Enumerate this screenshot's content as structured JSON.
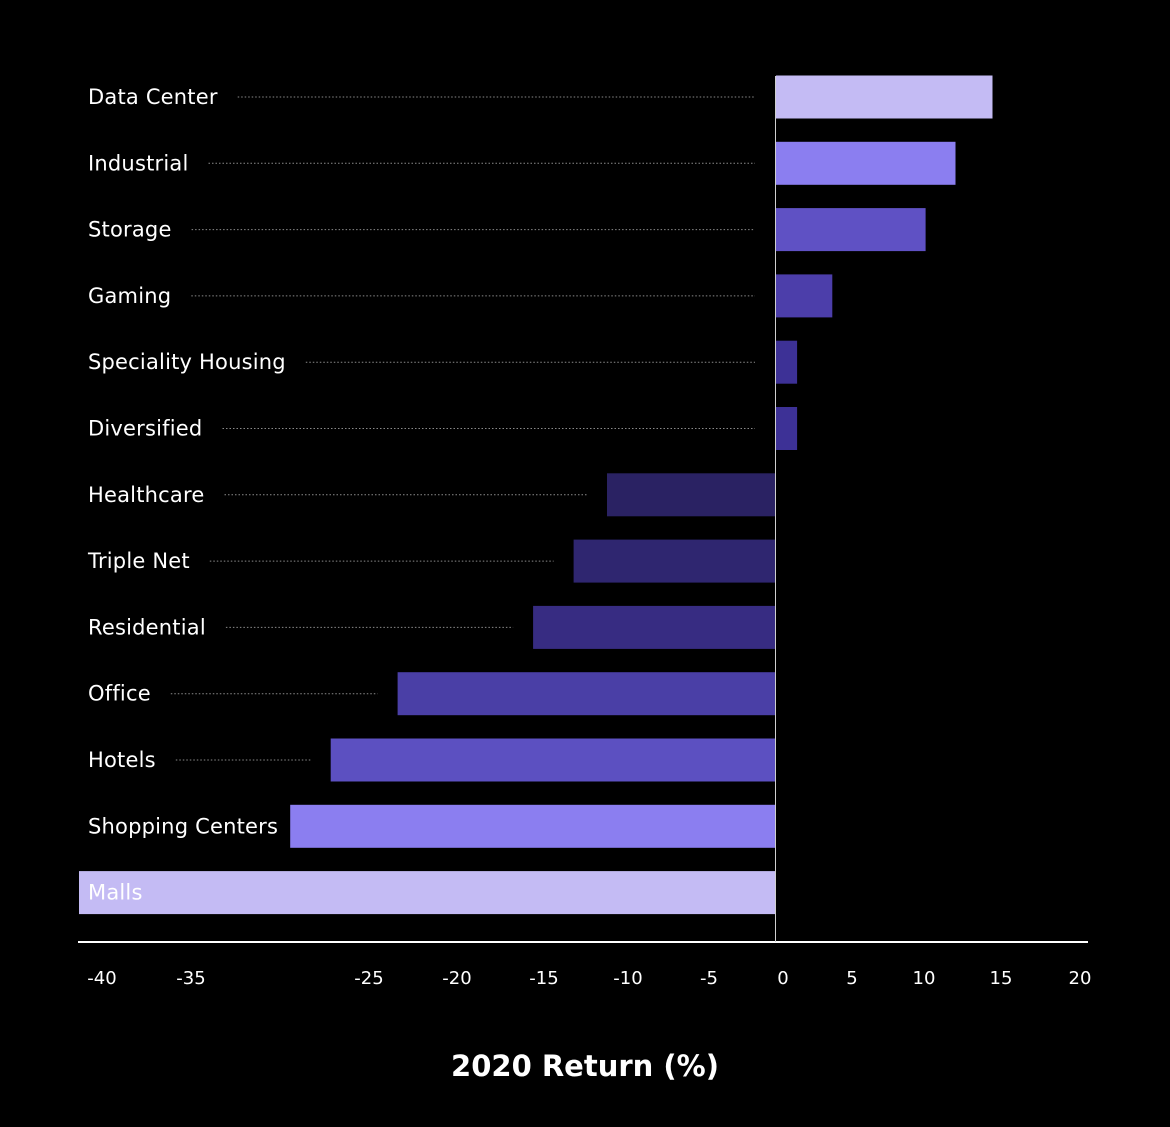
{
  "chart_data": {
    "type": "bar",
    "orientation": "horizontal",
    "xlabel": "2020 Return (%)",
    "categories": [
      "Data Center",
      "Industrial",
      "Storage",
      "Gaming",
      "Speciality Housing",
      "Diversified",
      "Healthcare",
      "Triple Net",
      "Residential",
      "Office",
      "Hotels",
      "Shopping Centers",
      "Malls"
    ],
    "values": [
      12.3,
      10.2,
      8.5,
      3.2,
      1.2,
      1.2,
      -9.6,
      -11.5,
      -13.8,
      -21.5,
      -25.3,
      -27.6,
      -39.6
    ],
    "colors": [
      "#c4bbf4",
      "#8b7ef0",
      "#5f51c4",
      "#4c3eaa",
      "#3d3196",
      "#3d3196",
      "#2a2263",
      "#2f2670",
      "#372c82",
      "#4a3fa6",
      "#5c50c1",
      "#8b7ef0",
      "#c4bbf4"
    ],
    "x_ticks": [
      "-40",
      "-35",
      "-25",
      "-20",
      "-15",
      "-10",
      "-5",
      "0",
      "5",
      "10",
      "15",
      "20"
    ],
    "xlim": [
      -39.6,
      17.3
    ],
    "grid": false,
    "legend": "none",
    "label_leader_lines": "dotted"
  }
}
